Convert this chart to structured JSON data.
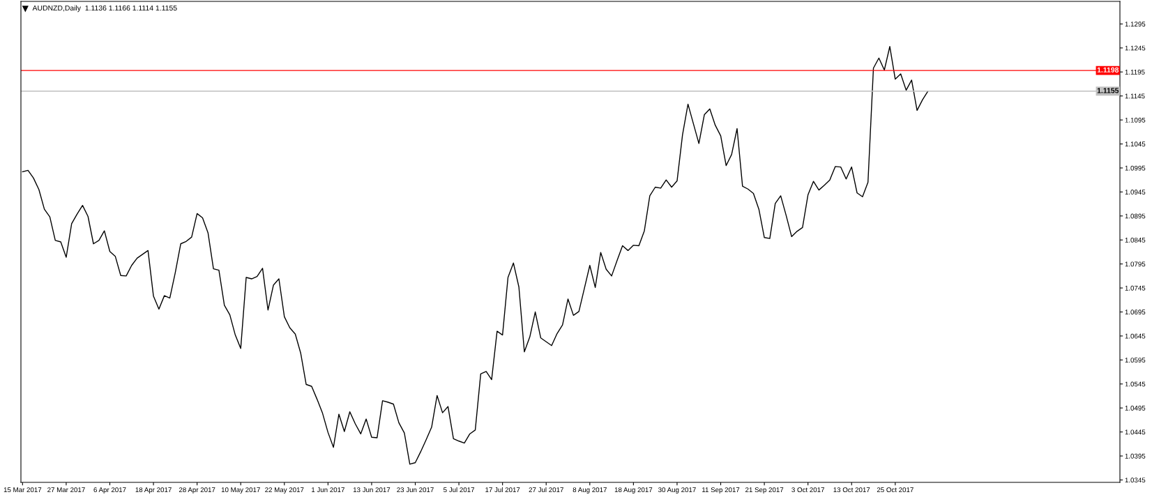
{
  "chart_data": {
    "type": "line",
    "title": "AUDNZD,Daily  1.1136 1.1166 1.1114 1.1155",
    "categories": [
      "15 Mar 2017",
      null,
      null,
      null,
      null,
      null,
      null,
      null,
      "27 Mar 2017",
      null,
      null,
      null,
      null,
      null,
      null,
      null,
      "6 Apr 2017",
      null,
      null,
      null,
      null,
      null,
      null,
      null,
      "18 Apr 2017",
      null,
      null,
      null,
      null,
      null,
      null,
      null,
      "28 Apr 2017",
      null,
      null,
      null,
      null,
      null,
      null,
      null,
      "10 May 2017",
      null,
      null,
      null,
      null,
      null,
      null,
      null,
      "22 May 2017",
      null,
      null,
      null,
      null,
      null,
      null,
      null,
      "1 Jun 2017",
      null,
      null,
      null,
      null,
      null,
      null,
      null,
      "13 Jun 2017",
      null,
      null,
      null,
      null,
      null,
      null,
      null,
      "23 Jun 2017",
      null,
      null,
      null,
      null,
      null,
      null,
      null,
      "5 Jul 2017",
      null,
      null,
      null,
      null,
      null,
      null,
      null,
      "17 Jul 2017",
      null,
      null,
      null,
      null,
      null,
      null,
      null,
      "27 Jul 2017",
      null,
      null,
      null,
      null,
      null,
      null,
      null,
      "8 Aug 2017",
      null,
      null,
      null,
      null,
      null,
      null,
      null,
      "18 Aug 2017",
      null,
      null,
      null,
      null,
      null,
      null,
      null,
      "30 Aug 2017",
      null,
      null,
      null,
      null,
      null,
      null,
      null,
      "11 Sep 2017",
      null,
      null,
      null,
      null,
      null,
      null,
      null,
      "21 Sep 2017",
      null,
      null,
      null,
      null,
      null,
      null,
      null,
      "3 Oct 2017",
      null,
      null,
      null,
      null,
      null,
      null,
      null,
      "13 Oct 2017",
      null,
      null,
      null,
      null,
      null,
      null,
      null,
      "25 Oct 2017",
      null,
      null,
      null,
      null,
      null,
      null
    ],
    "series": [
      {
        "color": "#000000",
        "values": [
          1.0987,
          1.099,
          1.0974,
          1.095,
          1.0909,
          1.0893,
          1.0844,
          1.0841,
          1.0809,
          1.0879,
          1.0899,
          1.0917,
          1.0894,
          1.0837,
          1.0844,
          1.0864,
          1.0821,
          1.0811,
          1.0771,
          1.077,
          1.0792,
          1.0807,
          1.0815,
          1.0823,
          1.0728,
          1.0701,
          1.0729,
          1.0724,
          1.0777,
          1.0837,
          1.0842,
          1.0851,
          1.09,
          1.0891,
          1.086,
          1.0785,
          1.0782,
          1.0709,
          1.0689,
          1.0647,
          1.0619,
          1.0767,
          1.0764,
          1.0769,
          1.0786,
          1.0699,
          1.0751,
          1.0764,
          1.0685,
          1.0662,
          1.0649,
          1.0609,
          1.0544,
          1.054,
          1.0513,
          1.0484,
          1.0444,
          1.0413,
          1.0482,
          1.0446,
          1.0487,
          1.0462,
          1.0441,
          1.0472,
          1.0434,
          1.0433,
          1.051,
          1.0507,
          1.0503,
          1.0464,
          1.0443,
          1.0378,
          1.0381,
          1.0404,
          1.0429,
          1.0455,
          1.0521,
          1.0485,
          1.0498,
          1.0431,
          1.0426,
          1.0422,
          1.0441,
          1.0449,
          1.0566,
          1.0571,
          1.0554,
          1.0655,
          1.0647,
          1.0767,
          1.0797,
          1.0747,
          1.0612,
          1.0643,
          1.0695,
          1.0641,
          1.0633,
          1.0625,
          1.065,
          1.0668,
          1.0722,
          1.0688,
          1.0696,
          1.0744,
          1.0792,
          1.0746,
          1.0819,
          1.0784,
          1.077,
          1.0802,
          1.0833,
          1.0823,
          1.0834,
          1.0833,
          1.0864,
          1.0937,
          1.0955,
          1.0953,
          1.097,
          1.0955,
          1.0968,
          1.1064,
          1.1128,
          1.1087,
          1.1046,
          1.1106,
          1.1118,
          1.1084,
          1.1062,
          1.1,
          1.1023,
          1.1077,
          1.0957,
          1.0951,
          1.0942,
          1.0909,
          1.085,
          1.0848,
          1.0921,
          1.0937,
          1.0896,
          1.0852,
          1.0863,
          1.0871,
          1.0939,
          1.0967,
          1.0949,
          1.0959,
          1.097,
          1.0998,
          1.0997,
          1.0972,
          1.0997,
          1.0943,
          1.0935,
          1.0965,
          1.1203,
          1.1224,
          1.1199,
          1.1248,
          1.118,
          1.1191,
          1.1157,
          1.1178,
          1.1115,
          1.1137,
          1.1155
        ]
      }
    ],
    "ylim": [
      1.034,
      1.1342
    ],
    "yticks": [
      1.0345,
      1.0395,
      1.0445,
      1.0495,
      1.0545,
      1.0595,
      1.0645,
      1.0695,
      1.0745,
      1.0795,
      1.0845,
      1.0895,
      1.0945,
      1.0995,
      1.1045,
      1.1095,
      1.1145,
      1.1195,
      1.1245,
      1.1295
    ],
    "ref_lines": [
      {
        "axis": "y",
        "value": 1.1198,
        "label": "1.1198",
        "color": "#ff0000"
      },
      {
        "axis": "y",
        "value": 1.1155,
        "label": "1.1155",
        "color": "#c0c0c0"
      }
    ]
  }
}
